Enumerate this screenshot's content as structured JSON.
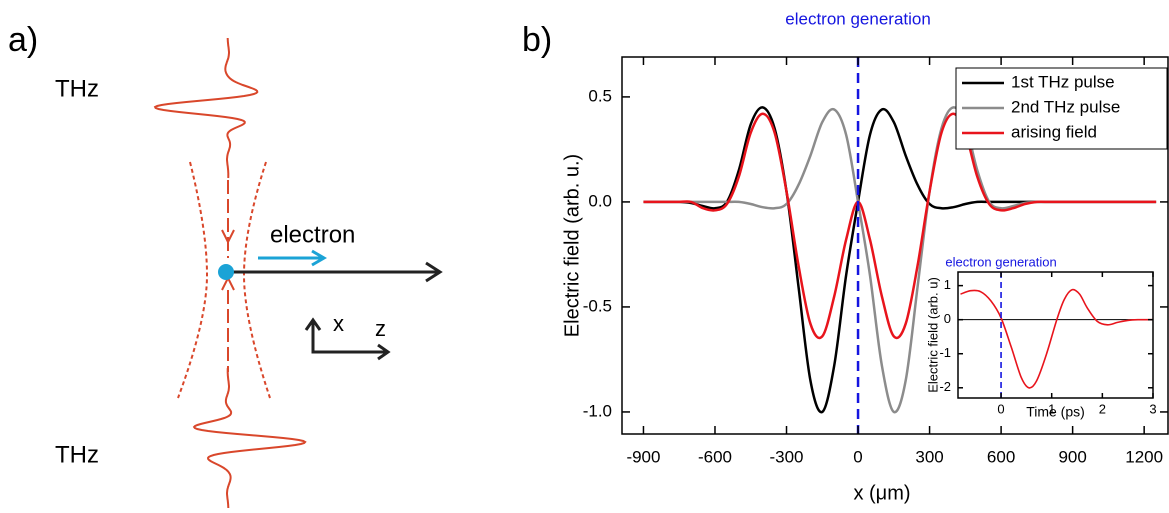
{
  "panel_labels": [
    "a)",
    "b)"
  ],
  "diagram": {
    "thz_top": "THz",
    "thz_bottom": "THz",
    "electron": "electron",
    "axis_x": "x",
    "axis_z": "z"
  },
  "chart_data": [
    {
      "type": "line",
      "annotation": "electron generation",
      "xlabel": "x (μm)",
      "ylabel": "Electric field (arb. u.)",
      "x": [
        -900,
        -850,
        -800,
        -750,
        -700,
        -650,
        -600,
        -550,
        -500,
        -450,
        -400,
        -350,
        -300,
        -250,
        -200,
        -150,
        -100,
        -50,
        0,
        50,
        100,
        150,
        200,
        250,
        300,
        350,
        400,
        450,
        500,
        550,
        600,
        650,
        700,
        750,
        800,
        850,
        900,
        950,
        1000,
        1050,
        1100,
        1150,
        1200,
        1250
      ],
      "series": [
        {
          "name": "1st THz pulse",
          "color": "#000000",
          "values": [
            0,
            0,
            0,
            0,
            -0.005,
            -0.02,
            -0.03,
            0,
            0.15,
            0.37,
            0.45,
            0.35,
            0.05,
            -0.4,
            -0.85,
            -1.0,
            -0.78,
            -0.35,
            0,
            0.32,
            0.44,
            0.38,
            0.22,
            0.08,
            -0.01,
            -0.03,
            -0.025,
            -0.01,
            0,
            0,
            0,
            0,
            0,
            0,
            0,
            0,
            0,
            0,
            0,
            0,
            0,
            0,
            0,
            0
          ]
        },
        {
          "name": "2nd THz pulse",
          "color": "#8c8c8c",
          "values": [
            0,
            0,
            0,
            0,
            0,
            0,
            0,
            0,
            0,
            -0.01,
            -0.025,
            -0.03,
            -0.01,
            0.08,
            0.22,
            0.38,
            0.44,
            0.32,
            0,
            -0.35,
            -0.78,
            -1.0,
            -0.85,
            -0.4,
            0.05,
            0.35,
            0.45,
            0.37,
            0.15,
            0,
            -0.03,
            -0.02,
            -0.005,
            0,
            0,
            0,
            0,
            0,
            0,
            0,
            0,
            0,
            0,
            0
          ]
        },
        {
          "name": "arising field",
          "color": "#e8141c",
          "values": [
            0,
            0,
            0,
            0,
            0,
            -0.03,
            -0.04,
            -0.01,
            0.12,
            0.33,
            0.42,
            0.33,
            0.05,
            -0.3,
            -0.58,
            -0.64,
            -0.45,
            -0.18,
            0,
            -0.18,
            -0.45,
            -0.64,
            -0.58,
            -0.3,
            0.05,
            0.33,
            0.42,
            0.33,
            0.12,
            -0.01,
            -0.04,
            -0.03,
            -0.01,
            0,
            0,
            0,
            0,
            0,
            0,
            0,
            0,
            0,
            0,
            0
          ]
        }
      ],
      "xlim": [
        -990,
        1300
      ],
      "ylim": [
        -1.105,
        0.69
      ],
      "xticks": [
        -900,
        -600,
        -300,
        0,
        300,
        600,
        900,
        1200
      ],
      "yticks": [
        {
          "value": -1,
          "label": "-1.0"
        },
        -0.5,
        {
          "value": 0,
          "label": "0.0"
        },
        0.5
      ],
      "vline": 0,
      "legend": "upper right"
    },
    {
      "type": "line",
      "annotation": "electron generation",
      "xlabel": "Time (ps)",
      "ylabel": "Electric field (arb. u)",
      "x": [
        -0.8,
        -0.6,
        -0.4,
        -0.2,
        0,
        0.2,
        0.4,
        0.55,
        0.7,
        0.9,
        1.1,
        1.25,
        1.4,
        1.55,
        1.7,
        1.9,
        2.1,
        2.3,
        2.5,
        2.7,
        3.0
      ],
      "series": [
        {
          "color": "#e8141c",
          "values": [
            0.75,
            0.85,
            0.82,
            0.55,
            0.05,
            -0.8,
            -1.7,
            -2.0,
            -1.8,
            -1.0,
            0.0,
            0.6,
            0.88,
            0.75,
            0.35,
            -0.05,
            -0.15,
            -0.08,
            -0.02,
            0,
            0
          ]
        }
      ],
      "xlim": [
        -0.85,
        3
      ],
      "ylim": [
        -2.3,
        1.4
      ],
      "xticks": [
        0,
        1,
        2,
        3
      ],
      "yticks": [
        -2,
        -1,
        0,
        1
      ],
      "vline": 0,
      "hline": 0
    }
  ]
}
